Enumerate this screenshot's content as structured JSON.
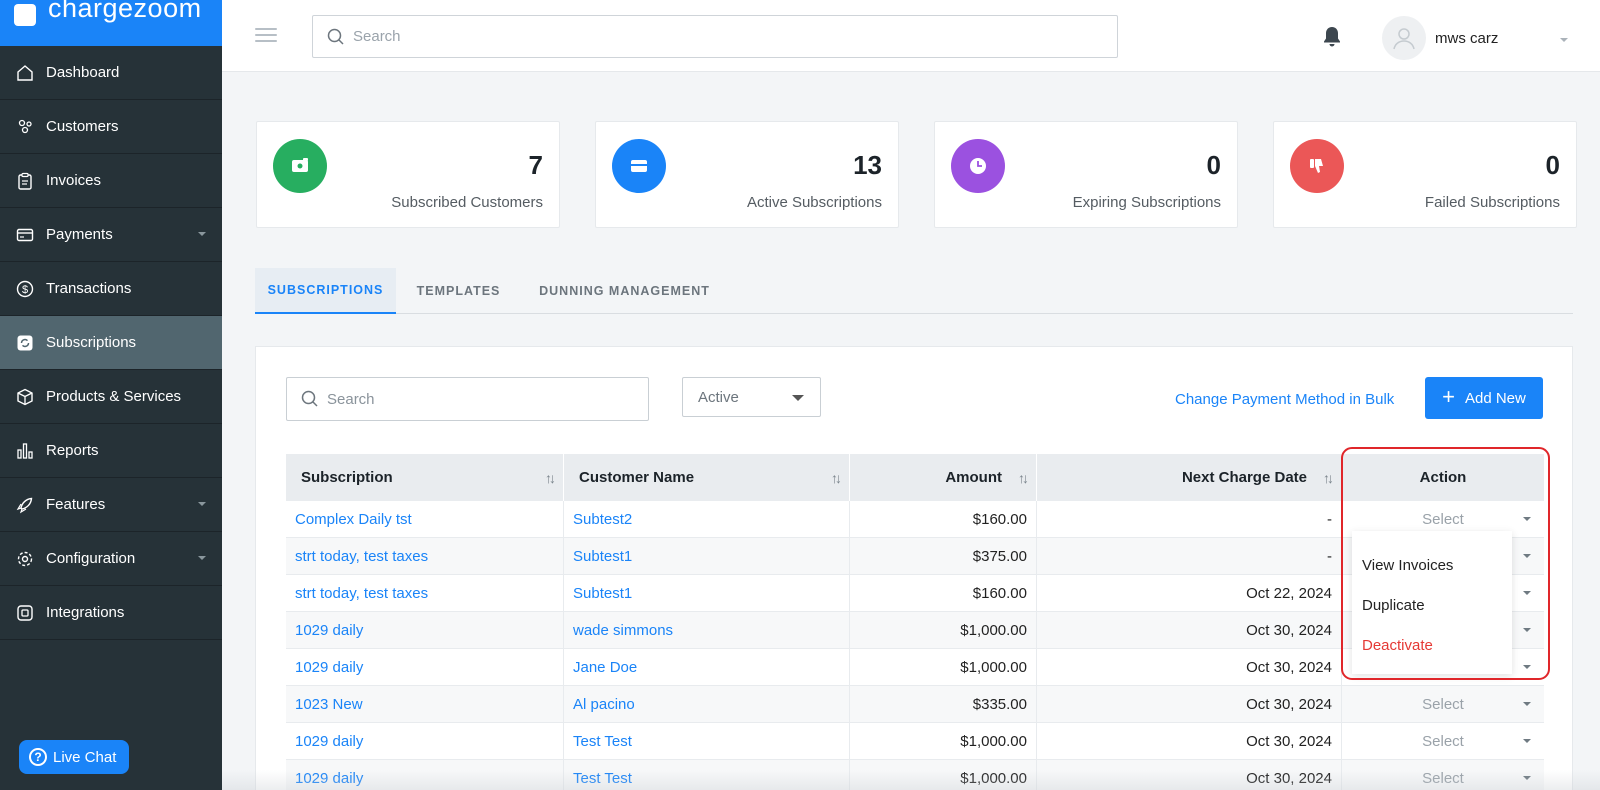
{
  "brand": {
    "name": "chargezoom"
  },
  "sidebar": {
    "items": [
      {
        "label": "Dashboard",
        "icon": "home-icon",
        "has_caret": false,
        "active": false
      },
      {
        "label": "Customers",
        "icon": "users-icon",
        "has_caret": false,
        "active": false
      },
      {
        "label": "Invoices",
        "icon": "clipboard-icon",
        "has_caret": false,
        "active": false
      },
      {
        "label": "Payments",
        "icon": "credit-card-icon",
        "has_caret": true,
        "active": false
      },
      {
        "label": "Transactions",
        "icon": "dollar-circle-icon",
        "has_caret": false,
        "active": false
      },
      {
        "label": "Subscriptions",
        "icon": "refresh-icon",
        "has_caret": false,
        "active": true
      },
      {
        "label": "Products & Services",
        "icon": "box-icon",
        "has_caret": false,
        "active": false
      },
      {
        "label": "Reports",
        "icon": "bar-chart-icon",
        "has_caret": false,
        "active": false
      },
      {
        "label": "Features",
        "icon": "rocket-icon",
        "has_caret": true,
        "active": false
      },
      {
        "label": "Configuration",
        "icon": "gear-icon",
        "has_caret": true,
        "active": false
      },
      {
        "label": "Integrations",
        "icon": "plug-icon",
        "has_caret": false,
        "active": false
      }
    ],
    "live_chat_label": "Live Chat"
  },
  "header": {
    "search_placeholder": "Search",
    "user_name": "mws carz"
  },
  "stats": [
    {
      "value": "7",
      "label": "Subscribed Customers",
      "color": "#27ae60",
      "icon": "wallet-icon"
    },
    {
      "value": "13",
      "label": "Active Subscriptions",
      "color": "#1a84f8",
      "icon": "card-icon"
    },
    {
      "value": "0",
      "label": "Expiring Subscriptions",
      "color": "#9b51e0",
      "icon": "clock-icon"
    },
    {
      "value": "0",
      "label": "Failed Subscriptions",
      "color": "#eb5757",
      "icon": "thumbs-down-icon"
    }
  ],
  "tabs": [
    {
      "label": "SUBSCRIPTIONS",
      "active": true
    },
    {
      "label": "TEMPLATES",
      "active": false
    },
    {
      "label": "DUNNING MANAGEMENT",
      "active": false
    }
  ],
  "toolbar": {
    "search_placeholder": "Search",
    "status_value": "Active",
    "bulk_link": "Change Payment Method in Bulk",
    "add_new_label": "Add New"
  },
  "table": {
    "columns": [
      "Subscription",
      "Customer Name",
      "Amount",
      "Next Charge Date",
      "Action"
    ],
    "action_placeholder": "Select",
    "rows": [
      {
        "subscription": "Complex Daily tst",
        "customer": "Subtest2",
        "amount": "$160.00",
        "next_charge": "-"
      },
      {
        "subscription": "strt today, test taxes",
        "customer": "Subtest1",
        "amount": "$375.00",
        "next_charge": "-"
      },
      {
        "subscription": "strt today, test taxes",
        "customer": "Subtest1",
        "amount": "$160.00",
        "next_charge": "Oct 22, 2024"
      },
      {
        "subscription": "1029 daily",
        "customer": "wade simmons",
        "amount": "$1,000.00",
        "next_charge": "Oct 30, 2024"
      },
      {
        "subscription": "1029 daily",
        "customer": "Jane Doe",
        "amount": "$1,000.00",
        "next_charge": "Oct 30, 2024"
      },
      {
        "subscription": "1023 New",
        "customer": "Al pacino",
        "amount": "$335.00",
        "next_charge": "Oct 30, 2024"
      },
      {
        "subscription": "1029 daily",
        "customer": "Test Test",
        "amount": "$1,000.00",
        "next_charge": "Oct 30, 2024"
      },
      {
        "subscription": "1029 daily",
        "customer": "Test Test",
        "amount": "$1,000.00",
        "next_charge": "Oct 30, 2024"
      }
    ]
  },
  "action_menu": {
    "items": [
      {
        "label": "View Invoices",
        "danger": false
      },
      {
        "label": "Duplicate",
        "danger": false
      },
      {
        "label": "Deactivate",
        "danger": true
      }
    ]
  }
}
